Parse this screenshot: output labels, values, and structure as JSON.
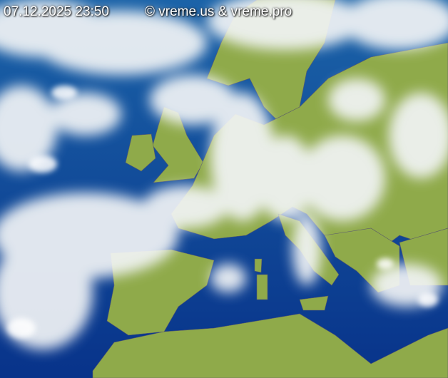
{
  "timestamp": "07.12.2025 23:50",
  "copyright": "© vreme.us & vreme.pro",
  "colors": {
    "sea": "#0b4590",
    "land": "#8faa4a",
    "cloud": "#f2f4f6",
    "border": "#555566"
  }
}
